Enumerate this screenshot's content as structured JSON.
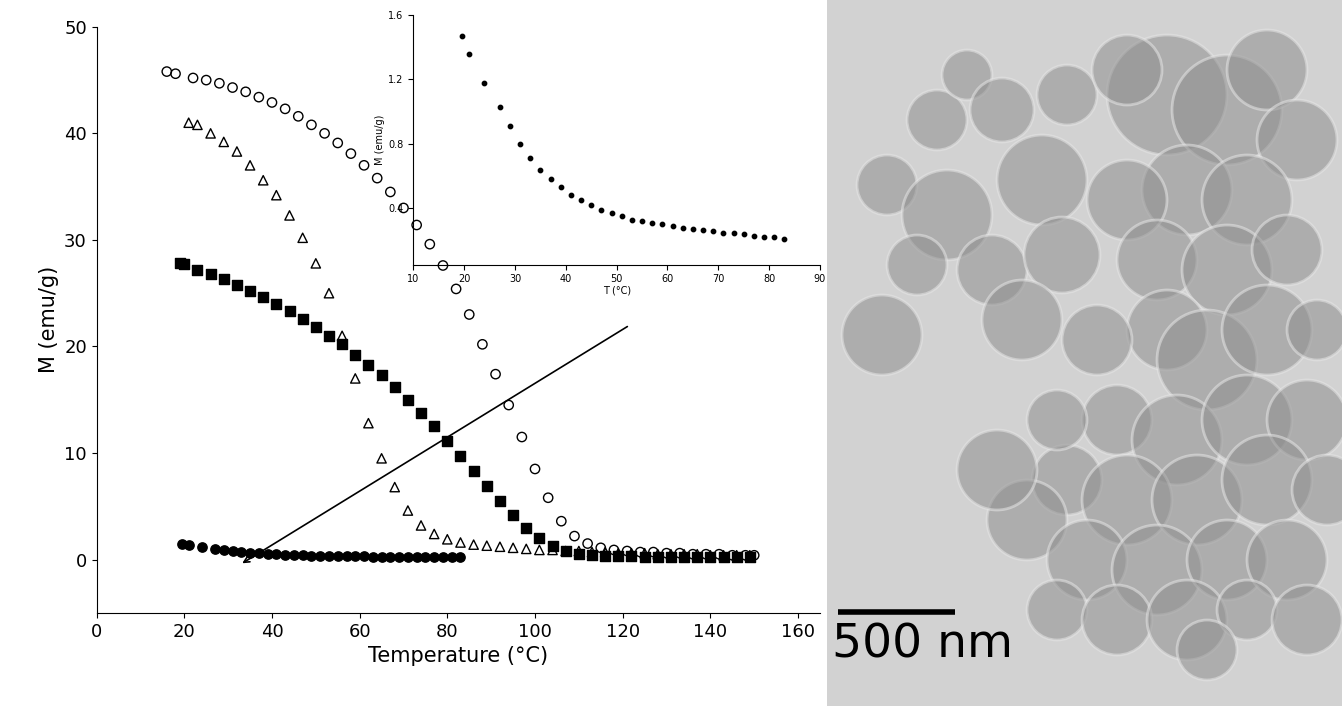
{
  "chart_data": [
    {
      "type": "scatter",
      "x_label": "Temperature (°C)",
      "y_label": "M (emu/g)",
      "xlim": [
        0,
        165
      ],
      "xticks": [
        0,
        20,
        40,
        60,
        80,
        100,
        120,
        140,
        160
      ],
      "ylim": [
        -5,
        50
      ],
      "yticks": [
        0,
        10,
        20,
        30,
        40,
        50
      ],
      "series": [
        {
          "color": "#000000",
          "marker": "circle-open",
          "x": [
            16,
            18,
            22,
            25,
            28,
            31,
            34,
            37,
            40,
            43,
            46,
            49,
            52,
            55,
            58,
            61,
            64,
            67,
            70,
            73,
            76,
            79,
            82,
            85,
            88,
            91,
            94,
            97,
            100,
            103,
            106,
            109,
            112,
            115,
            118,
            121,
            124,
            127,
            130,
            133,
            136,
            139,
            142,
            145,
            148,
            150
          ],
          "values": [
            45.8,
            45.6,
            45.2,
            45.0,
            44.7,
            44.3,
            43.9,
            43.4,
            42.9,
            42.3,
            41.6,
            40.8,
            40.0,
            39.1,
            38.1,
            37.0,
            35.8,
            34.5,
            33.0,
            31.4,
            29.6,
            27.6,
            25.4,
            23.0,
            20.2,
            17.4,
            14.5,
            11.5,
            8.5,
            5.8,
            3.6,
            2.2,
            1.5,
            1.1,
            0.9,
            0.8,
            0.7,
            0.7,
            0.6,
            0.6,
            0.5,
            0.5,
            0.5,
            0.4,
            0.4,
            0.4
          ]
        },
        {
          "color": "#000000",
          "marker": "triangle-open",
          "x": [
            21,
            23,
            26,
            29,
            32,
            35,
            38,
            41,
            44,
            47,
            50,
            53,
            56,
            59,
            62,
            65,
            68,
            71,
            74,
            77,
            80,
            83,
            86,
            89,
            92,
            95,
            98,
            101,
            104,
            107,
            110,
            113,
            116,
            119,
            122,
            125,
            128,
            131,
            134,
            137,
            140,
            143,
            146,
            149
          ],
          "values": [
            41.0,
            40.8,
            40.0,
            39.2,
            38.3,
            37.0,
            35.6,
            34.2,
            32.3,
            30.2,
            27.8,
            25.0,
            21.0,
            17.0,
            12.8,
            9.5,
            6.8,
            4.6,
            3.2,
            2.4,
            1.9,
            1.6,
            1.4,
            1.3,
            1.2,
            1.1,
            1.0,
            0.9,
            0.9,
            0.8,
            0.8,
            0.7,
            0.7,
            0.6,
            0.6,
            0.6,
            0.5,
            0.5,
            0.5,
            0.5,
            0.4,
            0.4,
            0.4,
            0.4
          ]
        },
        {
          "color": "#000000",
          "marker": "square",
          "x": [
            19,
            20,
            23,
            26,
            29,
            32,
            35,
            38,
            41,
            44,
            47,
            50,
            53,
            56,
            59,
            62,
            65,
            68,
            71,
            74,
            77,
            80,
            83,
            86,
            89,
            92,
            95,
            98,
            101,
            104,
            107,
            110,
            113,
            116,
            119,
            122,
            125,
            128,
            131,
            134,
            137,
            140,
            143,
            146,
            149
          ],
          "values": [
            27.8,
            27.7,
            27.2,
            26.8,
            26.3,
            25.8,
            25.2,
            24.6,
            24.0,
            23.3,
            22.6,
            21.8,
            21.0,
            20.2,
            19.2,
            18.3,
            17.3,
            16.2,
            15.0,
            13.8,
            12.5,
            11.1,
            9.7,
            8.3,
            6.9,
            5.5,
            4.2,
            3.0,
            2.0,
            1.3,
            0.8,
            0.5,
            0.4,
            0.3,
            0.3,
            0.3,
            0.2,
            0.2,
            0.2,
            0.2,
            0.2,
            0.2,
            0.2,
            0.2,
            0.2
          ]
        },
        {
          "color": "#000000",
          "marker": "circle",
          "x": [
            19.5,
            21,
            24,
            27,
            29,
            31,
            33,
            35,
            37,
            39,
            41,
            43,
            45,
            47,
            49,
            51,
            53,
            55,
            57,
            59,
            61,
            63,
            65,
            67,
            69,
            71,
            73,
            75,
            77,
            79,
            81,
            83
          ],
          "values": [
            1.47,
            1.36,
            1.18,
            1.03,
            0.91,
            0.8,
            0.71,
            0.64,
            0.58,
            0.53,
            0.48,
            0.45,
            0.42,
            0.39,
            0.37,
            0.35,
            0.33,
            0.32,
            0.31,
            0.3,
            0.29,
            0.28,
            0.27,
            0.265,
            0.26,
            0.25,
            0.245,
            0.24,
            0.23,
            0.225,
            0.22,
            0.21
          ]
        }
      ]
    },
    {
      "type": "scatter",
      "x_label": "T (°C)",
      "y_label": "M (emu/g)",
      "xlim": [
        10,
        90
      ],
      "xticks": [
        10,
        20,
        30,
        40,
        50,
        60,
        70,
        80,
        90
      ],
      "ylim": [
        0.05,
        1.6
      ],
      "yticks": [
        0.4,
        0.8,
        1.2,
        1.6
      ],
      "series": [
        {
          "color": "#000000",
          "marker": "circle",
          "x": [
            19.5,
            21,
            24,
            27,
            29,
            31,
            33,
            35,
            37,
            39,
            41,
            43,
            45,
            47,
            49,
            51,
            53,
            55,
            57,
            59,
            61,
            63,
            65,
            67,
            69,
            71,
            73,
            75,
            77,
            79,
            81,
            83
          ],
          "values": [
            1.47,
            1.36,
            1.18,
            1.03,
            0.91,
            0.8,
            0.71,
            0.64,
            0.58,
            0.53,
            0.48,
            0.45,
            0.42,
            0.39,
            0.37,
            0.35,
            0.33,
            0.32,
            0.31,
            0.3,
            0.29,
            0.28,
            0.27,
            0.265,
            0.26,
            0.25,
            0.245,
            0.24,
            0.23,
            0.225,
            0.22,
            0.21
          ]
        }
      ]
    }
  ],
  "micrograph": {
    "scale_bar": "500 nm"
  }
}
